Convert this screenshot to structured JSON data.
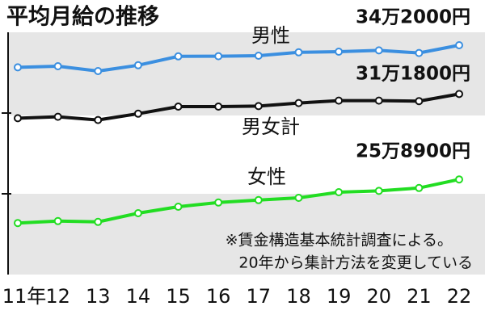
{
  "chart_data": {
    "type": "line",
    "title": "平均月給の推移",
    "categories": [
      "11年",
      "12",
      "13",
      "14",
      "15",
      "16",
      "17",
      "18",
      "19",
      "20",
      "21",
      "22"
    ],
    "series": [
      {
        "name": "男性",
        "color": "#3b8fe0",
        "values": [
          328300,
          329000,
          326000,
          329600,
          335100,
          335200,
          335500,
          337600,
          338000,
          338800,
          337200,
          342000
        ],
        "end_label": "34万2000円"
      },
      {
        "name": "男女計",
        "color": "#111111",
        "values": [
          296800,
          297700,
          295700,
          299600,
          304000,
          304000,
          304300,
          306200,
          307700,
          307700,
          307400,
          311800
        ],
        "end_label": "31万1800円"
      },
      {
        "name": "女性",
        "color": "#22dd22",
        "values": [
          231900,
          233100,
          232600,
          238000,
          242000,
          244600,
          246100,
          247500,
          251000,
          251800,
          253600,
          258900
        ],
        "end_label": "25万8900円"
      }
    ],
    "ylim": [
      200000,
      350000
    ],
    "yticks": [
      250000,
      300000
    ],
    "note": [
      "※賃金構造基本統計調査による。",
      "20年から集計方法を変更している"
    ]
  }
}
